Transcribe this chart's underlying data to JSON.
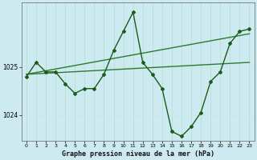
{
  "title": "Graphe pression niveau de la mer (hPa)",
  "bg_color": "#cdeaf0",
  "grid_color_v": "#b8ddd8",
  "grid_color_h": "#c8e8e0",
  "line_color_main": "#1a5c1a",
  "line_color_trend": "#2d7a2d",
  "xlim": [
    -0.5,
    23.5
  ],
  "ylim": [
    1023.45,
    1026.35
  ],
  "yticks": [
    1024,
    1025
  ],
  "xticks": [
    0,
    1,
    2,
    3,
    4,
    5,
    6,
    7,
    8,
    9,
    10,
    11,
    12,
    13,
    14,
    15,
    16,
    17,
    18,
    19,
    20,
    21,
    22,
    23
  ],
  "hours": [
    0,
    1,
    2,
    3,
    4,
    5,
    6,
    7,
    8,
    9,
    10,
    11,
    12,
    13,
    14,
    15,
    16,
    17,
    18,
    19,
    20,
    21,
    22,
    23
  ],
  "pressure": [
    1024.8,
    1025.1,
    1024.9,
    1024.9,
    1024.65,
    1024.45,
    1024.55,
    1024.55,
    1024.85,
    1025.35,
    1025.75,
    1026.15,
    1025.1,
    1024.85,
    1024.55,
    1023.65,
    1023.55,
    1023.75,
    1024.05,
    1024.7,
    1024.9,
    1025.5,
    1025.75,
    1025.8
  ],
  "trend1_x": [
    0,
    23
  ],
  "trend1_y": [
    1024.85,
    1025.7
  ],
  "trend2_x": [
    0,
    23
  ],
  "trend2_y": [
    1024.85,
    1025.1
  ],
  "figwidth": 3.2,
  "figheight": 2.0,
  "dpi": 100
}
